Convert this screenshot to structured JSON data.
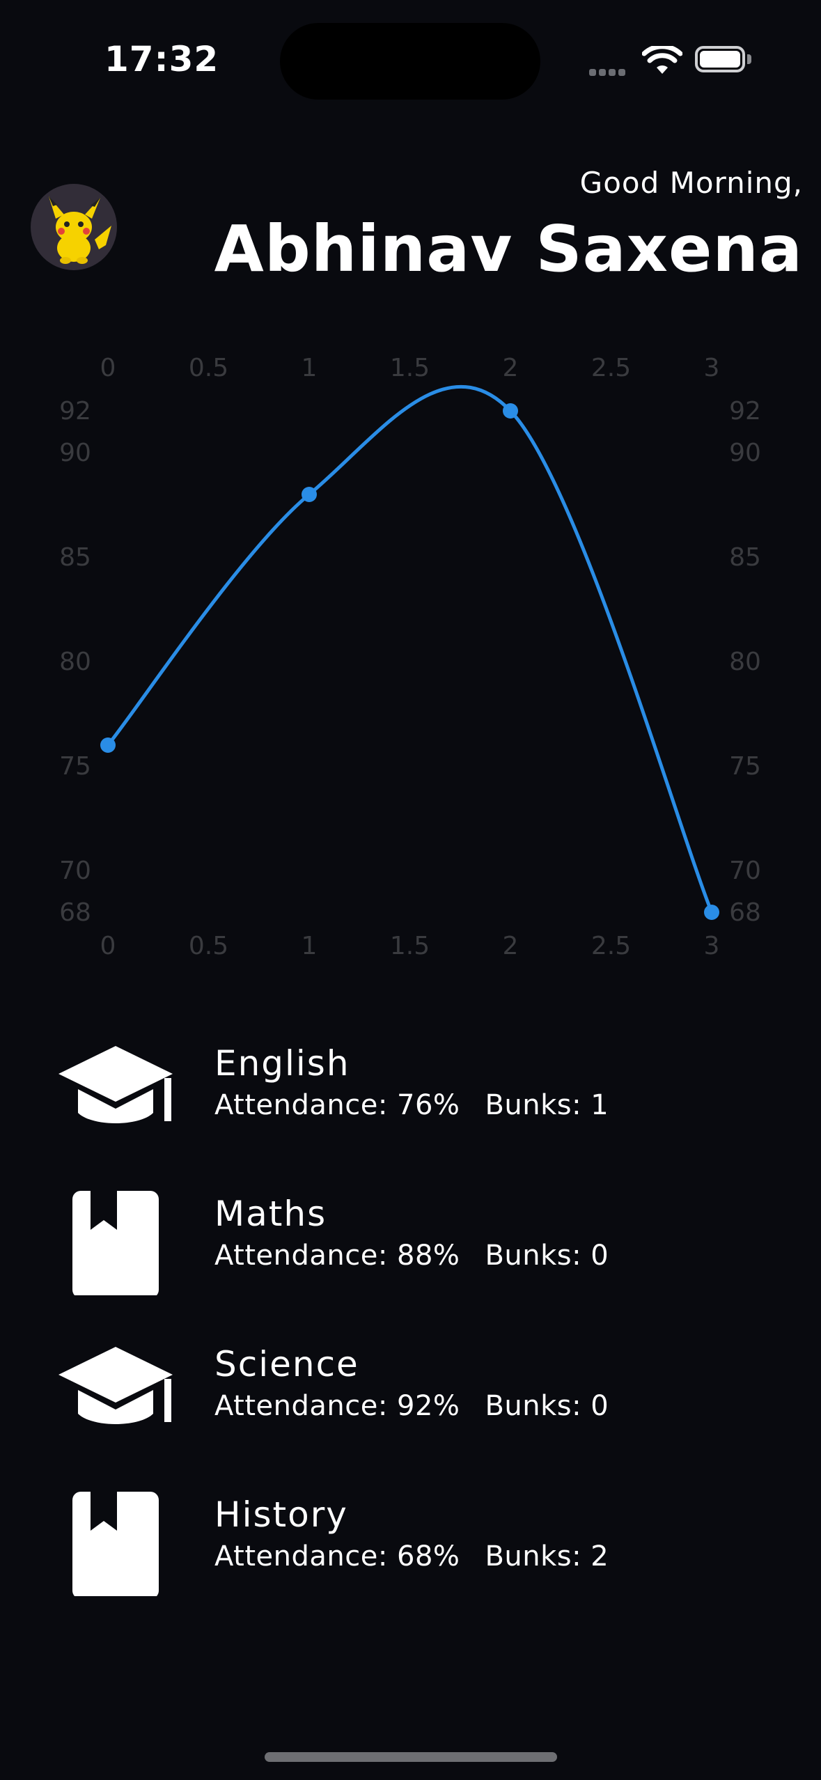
{
  "status_bar": {
    "time": "17:32"
  },
  "header": {
    "greeting": "Good Morning,",
    "user_name": "Abhinav Saxena",
    "avatar_icon": "pikachu-avatar"
  },
  "chart_data": {
    "type": "line",
    "x": [
      0,
      1,
      2,
      3
    ],
    "values": [
      76,
      88,
      92,
      68
    ],
    "x_ticks": [
      "0",
      "0.5",
      "1",
      "1.5",
      "2",
      "2.5",
      "3"
    ],
    "y_ticks": [
      "92",
      "90",
      "85",
      "80",
      "75",
      "70",
      "68"
    ],
    "xlim": [
      0,
      3
    ],
    "ylim": [
      68,
      92
    ],
    "line_color": "#2a8de6",
    "grid": false
  },
  "subjects": [
    {
      "name": "English",
      "attendance_label": "Attendance: 76%",
      "bunks_label": "Bunks: 1",
      "icon": "graduation-cap-icon"
    },
    {
      "name": "Maths",
      "attendance_label": "Attendance: 88%",
      "bunks_label": "Bunks: 0",
      "icon": "book-icon"
    },
    {
      "name": "Science",
      "attendance_label": "Attendance: 92%",
      "bunks_label": "Bunks: 0",
      "icon": "graduation-cap-icon"
    },
    {
      "name": "History",
      "attendance_label": "Attendance: 68%",
      "bunks_label": "Bunks: 2",
      "icon": "book-icon"
    }
  ]
}
